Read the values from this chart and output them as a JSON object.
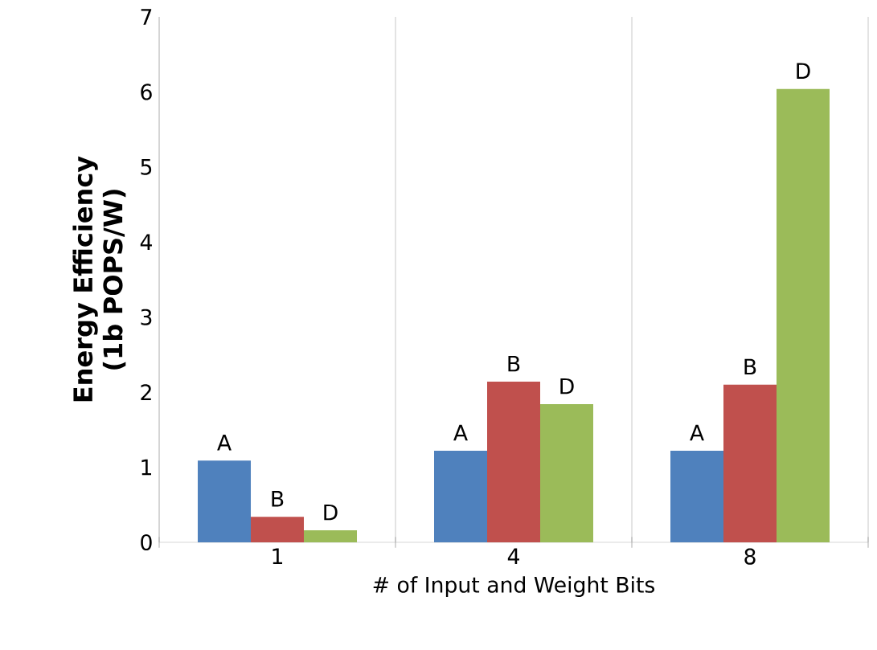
{
  "chart_data": {
    "type": "bar",
    "xlabel": "# of Input and Weight Bits",
    "ylabel": "Energy Efficiency (1b POPS/W)",
    "categories": [
      "1",
      "4",
      "8"
    ],
    "series": [
      {
        "name": "A",
        "color": "#4f81bd",
        "values": [
          1.09,
          1.22,
          1.22
        ]
      },
      {
        "name": "B",
        "color": "#c0504d",
        "values": [
          0.34,
          2.14,
          2.1
        ]
      },
      {
        "name": "D",
        "color": "#9bbb59",
        "values": [
          0.16,
          1.84,
          6.04
        ]
      }
    ],
    "ylim": [
      0,
      7
    ],
    "yticks": [
      0,
      1,
      2,
      3,
      4,
      5,
      6,
      7
    ],
    "grid": "x"
  }
}
